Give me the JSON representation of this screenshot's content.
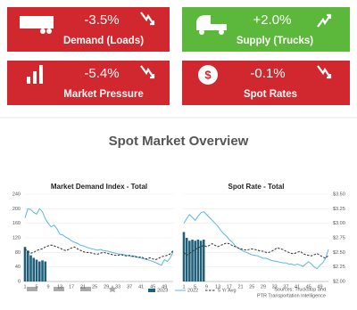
{
  "tiles": [
    {
      "value": "-3.5%",
      "label": "Demand (Loads)",
      "color": "#d0282e"
    },
    {
      "value": "+2.0%",
      "label": "Supply (Trucks)",
      "color": "#5cb83a"
    },
    {
      "value": "-5.4%",
      "label": "Market Pressure",
      "color": "#d0282e"
    },
    {
      "value": "-0.1%",
      "label": "Spot Rates",
      "color": "#d0282e"
    }
  ],
  "title": "Spot Market Overview",
  "sources": [
    "Sources: Truckstop and",
    "PTR Transportation Intelligence"
  ],
  "chart_data": [
    {
      "type": "combo",
      "title": "Market Demand Index - Total",
      "y_axis_side": "left",
      "grid": true,
      "x": [
        1,
        2,
        3,
        4,
        5,
        6,
        7,
        8,
        9,
        10,
        11,
        12,
        13,
        14,
        15,
        16,
        17,
        18,
        19,
        20,
        21,
        22,
        23,
        24,
        25,
        26,
        27,
        28,
        29,
        30,
        31,
        32,
        33,
        34,
        35,
        36,
        37,
        38,
        39,
        40,
        41,
        42,
        43,
        44,
        45,
        46,
        47,
        48,
        49,
        50,
        51,
        52
      ],
      "xlim": [
        1,
        52
      ],
      "xticks": [
        1,
        5,
        9,
        13,
        17,
        21,
        25,
        29,
        33,
        37,
        41,
        45,
        49
      ],
      "ylim": [
        0,
        240
      ],
      "yticks": [
        0,
        40,
        80,
        120,
        160,
        200,
        240
      ],
      "series": [
        {
          "name": "2023",
          "kind": "bar",
          "color": "#1f5f7a",
          "values": [
            95,
            85,
            72,
            65,
            60,
            55,
            58,
            55,
            null,
            null,
            null,
            null,
            null,
            null,
            null,
            null,
            null,
            null,
            null,
            null,
            null,
            null,
            null,
            null,
            null,
            null,
            null,
            null,
            null,
            null,
            null,
            null,
            null,
            null,
            null,
            null,
            null,
            null,
            null,
            null,
            null,
            null,
            null,
            null,
            null,
            null,
            null,
            null,
            null,
            null,
            null,
            null
          ]
        },
        {
          "name": "2022",
          "kind": "line",
          "color": "#5bb7e6",
          "values": [
            175,
            200,
            198,
            190,
            185,
            200,
            192,
            172,
            160,
            150,
            155,
            145,
            130,
            128,
            122,
            118,
            112,
            108,
            105,
            100,
            98,
            95,
            92,
            90,
            88,
            86,
            88,
            85,
            84,
            82,
            80,
            78,
            76,
            75,
            74,
            72,
            70,
            68,
            70,
            66,
            64,
            62,
            60,
            58,
            55,
            52,
            48,
            45,
            60,
            55,
            65,
            82
          ]
        },
        {
          "name": "5 Yr Avg",
          "kind": "line",
          "dash": true,
          "color": "#333333",
          "values": [
            90,
            82,
            78,
            80,
            85,
            88,
            90,
            95,
            98,
            100,
            98,
            95,
            92,
            88,
            85,
            88,
            92,
            95,
            90,
            86,
            82,
            80,
            80,
            78,
            76,
            75,
            78,
            80,
            78,
            76,
            74,
            72,
            72,
            74,
            72,
            70,
            72,
            70,
            68,
            66,
            68,
            64,
            62,
            65,
            62,
            60,
            64,
            68,
            70,
            72,
            76,
            85
          ]
        }
      ]
    },
    {
      "type": "combo",
      "title": "Spot Rate - Total",
      "y_axis_side": "right",
      "grid": true,
      "x": [
        1,
        2,
        3,
        4,
        5,
        6,
        7,
        8,
        9,
        10,
        11,
        12,
        13,
        14,
        15,
        16,
        17,
        18,
        19,
        20,
        21,
        22,
        23,
        24,
        25,
        26,
        27,
        28,
        29,
        30,
        31,
        32,
        33,
        34,
        35,
        36,
        37,
        38,
        39,
        40,
        41,
        42,
        43,
        44,
        45,
        46,
        47,
        48,
        49,
        50,
        51,
        52
      ],
      "xlim": [
        1,
        52
      ],
      "xticks": [
        1,
        5,
        9,
        13,
        17,
        21,
        25,
        29,
        33,
        37,
        41,
        45,
        49
      ],
      "ylim": [
        2,
        3.5
      ],
      "yticks": [
        {
          "value": 2,
          "label": "$2.00"
        },
        {
          "value": 2.25,
          "label": "$2.25"
        },
        {
          "value": 2.5,
          "label": "$2.50"
        },
        {
          "value": 2.75,
          "label": "$2.75"
        },
        {
          "value": 3,
          "label": "$3.00"
        },
        {
          "value": 3.25,
          "label": "$3.25"
        },
        {
          "value": 3.5,
          "label": "$3.50"
        }
      ],
      "series": [
        {
          "kind": "bar",
          "color": "#1f5f7a",
          "values": [
            2.85,
            2.75,
            2.7,
            2.72,
            2.7,
            2.72,
            2.7,
            2.72,
            null,
            null,
            null,
            null,
            null,
            null,
            null,
            null,
            null,
            null,
            null,
            null,
            null,
            null,
            null,
            null,
            null,
            null,
            null,
            null,
            null,
            null,
            null,
            null,
            null,
            null,
            null,
            null,
            null,
            null,
            null,
            null,
            null,
            null,
            null,
            null,
            null,
            null,
            null,
            null,
            null,
            null,
            null,
            null
          ]
        },
        {
          "kind": "line",
          "color": "#5bb7e6",
          "values": [
            3.0,
            3.08,
            3.15,
            3.1,
            3.05,
            3.12,
            3.18,
            3.2,
            3.15,
            3.1,
            3.05,
            3.0,
            2.95,
            2.88,
            2.82,
            2.78,
            2.72,
            2.68,
            2.62,
            2.58,
            2.55,
            2.52,
            2.5,
            2.48,
            2.46,
            2.45,
            2.44,
            2.42,
            2.4,
            2.4,
            2.38,
            2.36,
            2.35,
            2.34,
            2.33,
            2.32,
            2.32,
            2.3,
            2.3,
            2.28,
            2.3,
            2.28,
            2.26,
            2.3,
            2.34,
            2.3,
            2.25,
            2.22,
            2.28,
            2.32,
            2.4,
            2.55
          ]
        },
        {
          "kind": "line",
          "dash": true,
          "color": "#333333",
          "values": [
            2.5,
            2.45,
            2.48,
            2.52,
            2.55,
            2.58,
            2.6,
            2.62,
            2.6,
            2.62,
            2.65,
            2.62,
            2.6,
            2.62,
            2.64,
            2.66,
            2.65,
            2.62,
            2.6,
            2.58,
            2.56,
            2.55,
            2.54,
            2.55,
            2.56,
            2.55,
            2.54,
            2.52,
            2.52,
            2.5,
            2.5,
            2.52,
            2.55,
            2.58,
            2.56,
            2.55,
            2.52,
            2.5,
            2.48,
            2.48,
            2.5,
            2.52,
            2.48,
            2.46,
            2.45,
            2.44,
            2.46,
            2.48,
            2.45,
            2.42,
            2.4,
            2.45
          ]
        }
      ]
    }
  ]
}
